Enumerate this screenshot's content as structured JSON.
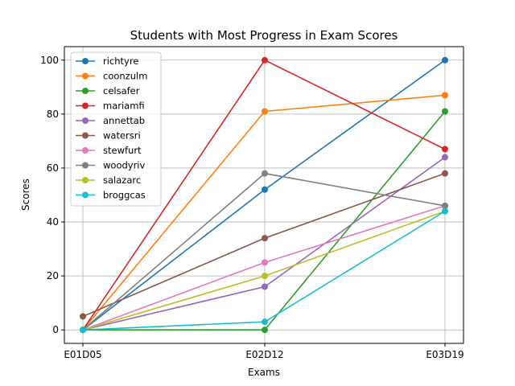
{
  "chart_data": {
    "type": "line",
    "title": "Students with Most Progress in Exam Scores",
    "xlabel": "Exams",
    "ylabel": "Scores",
    "categories": [
      "E01D05",
      "E02D12",
      "E03D19"
    ],
    "ylim": [
      -5,
      105
    ],
    "yticks": [
      0,
      20,
      40,
      60,
      80,
      100
    ],
    "grid": true,
    "legend_position": "top-left",
    "series": [
      {
        "name": "richtyre",
        "color": "#1f77b4",
        "values": [
          0,
          52,
          100
        ]
      },
      {
        "name": "coonzulm",
        "color": "#ff7f0e",
        "values": [
          0,
          81,
          87
        ]
      },
      {
        "name": "celsafer",
        "color": "#2ca02c",
        "values": [
          0,
          0,
          81
        ]
      },
      {
        "name": "mariamfi",
        "color": "#d62728",
        "values": [
          0,
          100,
          67
        ]
      },
      {
        "name": "annettab",
        "color": "#9467bd",
        "values": [
          0,
          16,
          64
        ]
      },
      {
        "name": "watersri",
        "color": "#8c564b",
        "values": [
          5,
          34,
          58
        ]
      },
      {
        "name": "stewfurt",
        "color": "#e377c2",
        "values": [
          0,
          25,
          46
        ]
      },
      {
        "name": "woodyriv",
        "color": "#7f7f7f",
        "values": [
          0,
          58,
          46
        ]
      },
      {
        "name": "salazarc",
        "color": "#bcbd22",
        "values": [
          0,
          20,
          44
        ]
      },
      {
        "name": "broggcas",
        "color": "#17becf",
        "values": [
          0,
          3,
          44
        ]
      }
    ]
  }
}
